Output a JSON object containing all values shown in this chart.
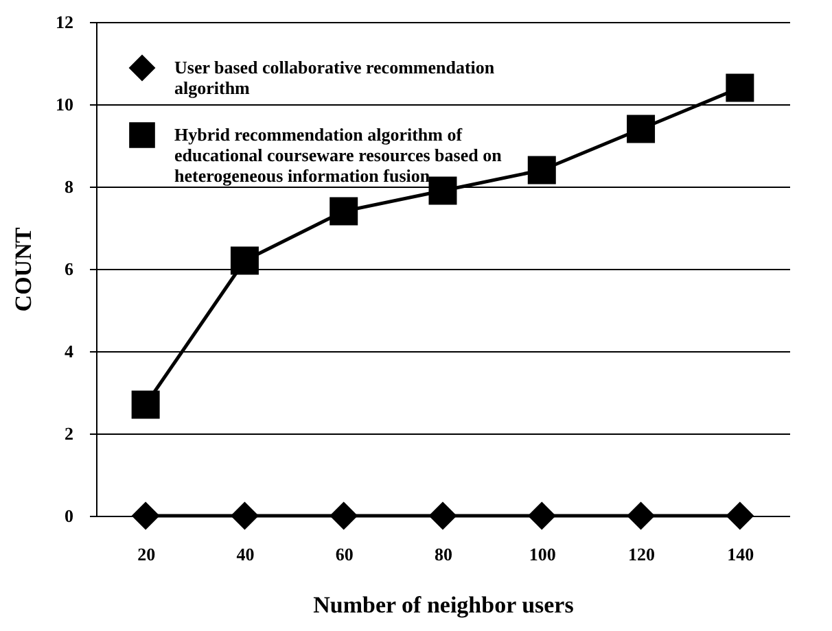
{
  "chart_data": {
    "type": "line",
    "xlabel": "Number of neighbor users",
    "ylabel": "COUNT",
    "categories": [
      "20",
      "40",
      "60",
      "80",
      "100",
      "120",
      "140"
    ],
    "series": [
      {
        "name": "User based collaborative recommendation algorithm",
        "color": "#000000",
        "marker": "diamond",
        "values": [
          0,
          0,
          0,
          0,
          0,
          0,
          0
        ]
      },
      {
        "name": "Hybrid recommendation algorithm of educational courseware resources based on heterogeneous information fusion",
        "color": "#000000",
        "marker": "square",
        "values": [
          2.7,
          6.2,
          7.4,
          7.9,
          8.4,
          9.4,
          10.4
        ]
      }
    ],
    "ylim": [
      0,
      12
    ],
    "yticks": [
      0,
      2,
      4,
      6,
      8,
      10,
      12
    ],
    "grid": "y",
    "legend": "top left",
    "line_style": "solid"
  }
}
